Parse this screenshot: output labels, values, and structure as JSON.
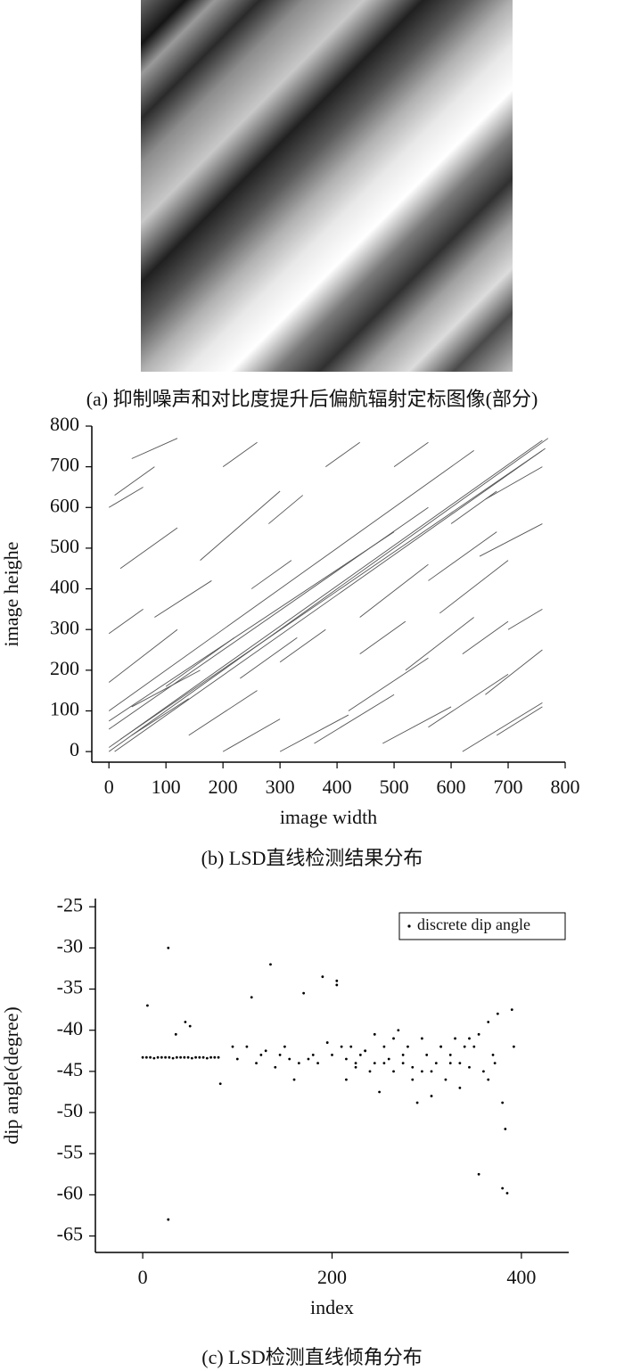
{
  "image": {
    "caption": "(a) 抑制噪声和对比度提升后偏航辐射定标图像(部分)"
  },
  "chart_data": [
    {
      "type": "segments",
      "caption": "(b) LSD直线检测结果分布",
      "x_label": "image width",
      "y_label": "image heighe",
      "xlim": [
        -30,
        800
      ],
      "ylim": [
        -26,
        800
      ],
      "xticks": [
        0,
        100,
        200,
        300,
        400,
        500,
        600,
        700,
        800
      ],
      "yticks": [
        0,
        100,
        200,
        300,
        400,
        500,
        600,
        700,
        800
      ],
      "color": "#555555",
      "segments": [
        [
          0,
          0,
          770,
          770
        ],
        [
          0,
          10,
          760,
          765
        ],
        [
          10,
          0,
          765,
          745
        ],
        [
          20,
          30,
          760,
          740
        ],
        [
          0,
          55,
          560,
          600
        ],
        [
          0,
          75,
          500,
          540
        ],
        [
          0,
          100,
          640,
          740
        ],
        [
          0,
          170,
          120,
          300
        ],
        [
          0,
          290,
          60,
          350
        ],
        [
          0,
          600,
          60,
          650
        ],
        [
          10,
          630,
          80,
          700
        ],
        [
          40,
          720,
          120,
          770
        ],
        [
          160,
          470,
          300,
          640
        ],
        [
          200,
          700,
          260,
          760
        ],
        [
          280,
          560,
          340,
          630
        ],
        [
          380,
          700,
          440,
          760
        ],
        [
          500,
          700,
          560,
          760
        ],
        [
          600,
          560,
          680,
          640
        ],
        [
          650,
          480,
          760,
          560
        ],
        [
          300,
          0,
          420,
          90
        ],
        [
          360,
          20,
          500,
          140
        ],
        [
          420,
          100,
          560,
          230
        ],
        [
          480,
          20,
          600,
          110
        ],
        [
          560,
          60,
          700,
          190
        ],
        [
          620,
          0,
          760,
          120
        ],
        [
          660,
          140,
          760,
          250
        ],
        [
          680,
          40,
          760,
          110
        ],
        [
          520,
          200,
          640,
          330
        ],
        [
          580,
          340,
          700,
          470
        ],
        [
          440,
          330,
          560,
          460
        ],
        [
          560,
          420,
          680,
          540
        ],
        [
          660,
          620,
          760,
          700
        ],
        [
          100,
          160,
          220,
          280
        ],
        [
          140,
          40,
          260,
          150
        ],
        [
          40,
          110,
          160,
          200
        ],
        [
          230,
          180,
          330,
          280
        ],
        [
          300,
          220,
          380,
          300
        ],
        [
          20,
          450,
          120,
          550
        ],
        [
          80,
          330,
          180,
          420
        ],
        [
          250,
          400,
          320,
          470
        ],
        [
          200,
          0,
          300,
          80
        ],
        [
          440,
          240,
          520,
          320
        ],
        [
          700,
          300,
          760,
          350
        ],
        [
          620,
          240,
          700,
          320
        ],
        [
          40,
          40,
          140,
          130
        ]
      ]
    },
    {
      "type": "scatter",
      "caption": "(c) LSD检测直线倾角分布",
      "x_label": "index",
      "y_label": "dip angle(degree)",
      "xlim": [
        -50,
        450
      ],
      "ylim": [
        -67,
        -24
      ],
      "xticks": [
        0,
        200,
        400
      ],
      "yticks": [
        -25,
        -30,
        -35,
        -40,
        -45,
        -50,
        -55,
        -60,
        -65
      ],
      "legend": "upper right",
      "series": [
        {
          "name": "discrete dip angle",
          "color": "#000000",
          "x": [
            0,
            4,
            8,
            12,
            16,
            20,
            24,
            28,
            32,
            36,
            40,
            44,
            48,
            52,
            56,
            60,
            64,
            68,
            72,
            76,
            80,
            5,
            27,
            27,
            35,
            45,
            50,
            82,
            95,
            100,
            110,
            115,
            120,
            125,
            130,
            135,
            140,
            145,
            150,
            155,
            160,
            165,
            170,
            175,
            180,
            185,
            190,
            195,
            200,
            205,
            205,
            210,
            215,
            220,
            225,
            230,
            235,
            240,
            245,
            250,
            255,
            260,
            265,
            270,
            275,
            280,
            285,
            290,
            295,
            300,
            305,
            310,
            315,
            320,
            325,
            330,
            335,
            340,
            345,
            350,
            355,
            360,
            365,
            370,
            375,
            380,
            380,
            383,
            385,
            390,
            392,
            372,
            365,
            355,
            345,
            335,
            325,
            315,
            305,
            295,
            285,
            275,
            265,
            255,
            245,
            235,
            225,
            215
          ],
          "y": [
            -43.3,
            -43.3,
            -43.3,
            -43.4,
            -43.3,
            -43.3,
            -43.3,
            -43.3,
            -43.4,
            -43.3,
            -43.3,
            -43.3,
            -43.3,
            -43.4,
            -43.3,
            -43.3,
            -43.3,
            -43.4,
            -43.3,
            -43.3,
            -43.3,
            -37,
            -30,
            -63,
            -40.5,
            -39,
            -39.5,
            -46.5,
            -42,
            -43.5,
            -42,
            -36,
            -44,
            -43,
            -42.5,
            -32,
            -44.5,
            -43,
            -42,
            -43.5,
            -46,
            -44,
            -35.5,
            -43.5,
            -43,
            -44,
            -33.5,
            -41.5,
            -43,
            -34,
            -34.5,
            -42,
            -43.5,
            -42,
            -44.5,
            -43,
            -42.5,
            -45,
            -44,
            -47.5,
            -42,
            -43.5,
            -45,
            -40,
            -43,
            -42,
            -44.5,
            -48.8,
            -41,
            -43,
            -45,
            -44,
            -42,
            -46,
            -43,
            -41,
            -44,
            -42,
            -44.5,
            -42,
            -57.5,
            -45,
            -39,
            -43,
            -38,
            -59.2,
            -48.8,
            -52,
            -59.8,
            -37.5,
            -42,
            -44,
            -46,
            -40.5,
            -41,
            -47,
            -44,
            -42,
            -48,
            -45,
            -46,
            -44,
            -41,
            -44,
            -40.5,
            -42.5,
            -44,
            -46
          ]
        }
      ]
    }
  ]
}
